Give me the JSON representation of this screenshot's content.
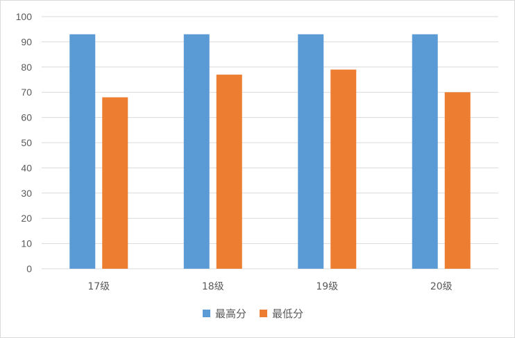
{
  "chart_data": {
    "type": "bar",
    "categories": [
      "17级",
      "18级",
      "19级",
      "20级"
    ],
    "series": [
      {
        "name": "最高分",
        "values": [
          93,
          93,
          93,
          93
        ],
        "color": "#5b9bd5"
      },
      {
        "name": "最低分",
        "values": [
          68,
          77,
          79,
          70
        ],
        "color": "#ed7d31"
      }
    ],
    "title": "",
    "xlabel": "",
    "ylabel": "",
    "ylim": [
      0,
      100
    ],
    "yticks": [
      0,
      10,
      20,
      30,
      40,
      50,
      60,
      70,
      80,
      90,
      100
    ],
    "grid": true,
    "legend_position": "bottom",
    "gridline_color": "#d9d9d9"
  }
}
